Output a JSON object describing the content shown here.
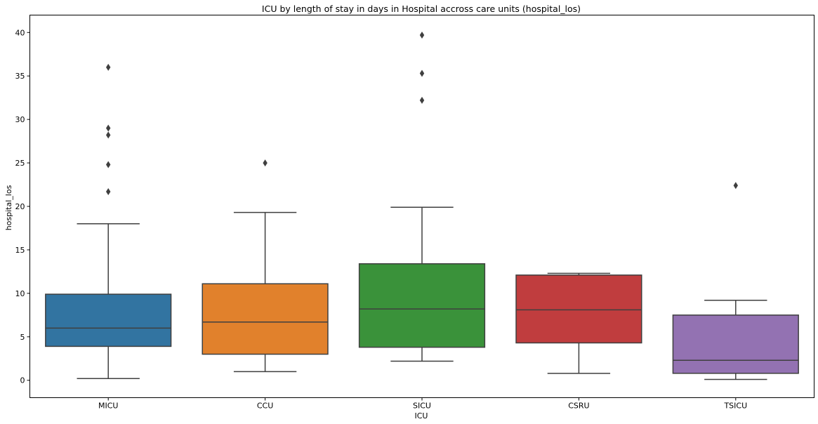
{
  "chart_data": {
    "type": "box",
    "title": "ICU by length of stay in days in Hospital accross care units (hospital_los)",
    "xlabel": "ICU",
    "ylabel": "hospital_los",
    "ylim": [
      -2,
      42
    ],
    "yticks": [
      0,
      5,
      10,
      15,
      20,
      25,
      30,
      35,
      40
    ],
    "grid": false,
    "categories": [
      "MICU",
      "CCU",
      "SICU",
      "CSRU",
      "TSICU"
    ],
    "colors": [
      "#3274a1",
      "#e1812c",
      "#3a923a",
      "#c03d3e",
      "#9372b2"
    ],
    "boxes": [
      {
        "category": "MICU",
        "whisker_low": 0.2,
        "q1": 3.9,
        "median": 6.0,
        "q3": 9.9,
        "whisker_high": 18.0,
        "outliers": [
          21.7,
          24.8,
          28.2,
          29.0,
          36.0
        ]
      },
      {
        "category": "CCU",
        "whisker_low": 1.0,
        "q1": 3.0,
        "median": 6.7,
        "q3": 11.1,
        "whisker_high": 19.3,
        "outliers": [
          25.0
        ]
      },
      {
        "category": "SICU",
        "whisker_low": 2.2,
        "q1": 3.8,
        "median": 8.2,
        "q3": 13.4,
        "whisker_high": 19.9,
        "outliers": [
          32.2,
          35.3,
          39.7
        ]
      },
      {
        "category": "CSRU",
        "whisker_low": 0.8,
        "q1": 4.3,
        "median": 8.1,
        "q3": 12.1,
        "whisker_high": 12.3,
        "outliers": []
      },
      {
        "category": "TSICU",
        "whisker_low": 0.1,
        "q1": 0.8,
        "median": 2.3,
        "q3": 7.5,
        "whisker_high": 9.2,
        "outliers": [
          22.4
        ]
      }
    ]
  }
}
